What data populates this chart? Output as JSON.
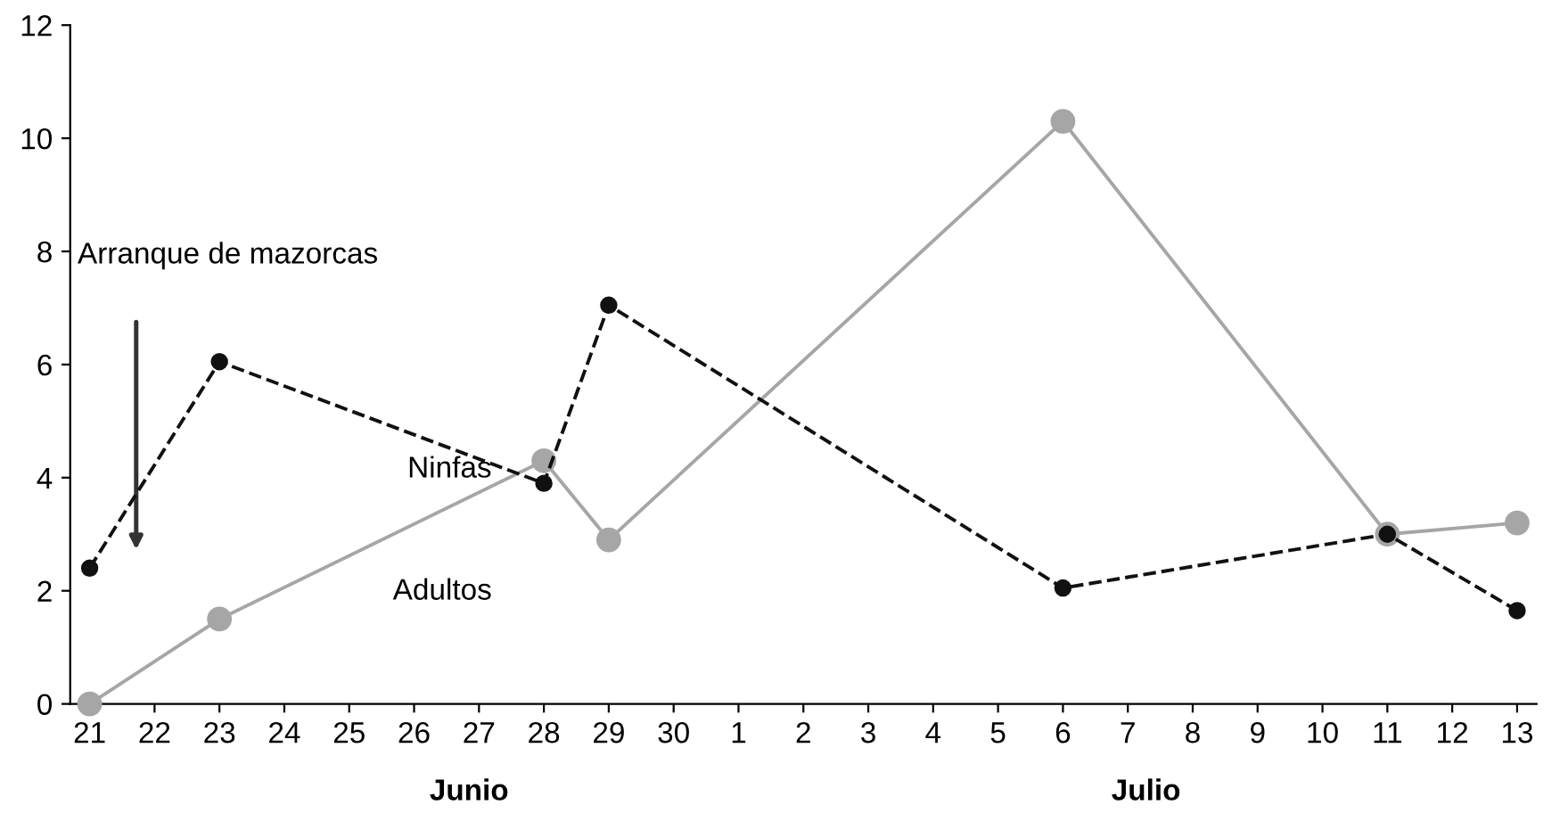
{
  "chart_data": {
    "type": "line",
    "categories": [
      "21",
      "22",
      "23",
      "24",
      "25",
      "26",
      "27",
      "28",
      "29",
      "30",
      "1",
      "2",
      "3",
      "4",
      "5",
      "6",
      "7",
      "8",
      "9",
      "10",
      "11",
      "12",
      "13"
    ],
    "series": [
      {
        "name": "Adultos",
        "color": "#a6a6a6",
        "marker": "circle",
        "line_style": "solid",
        "values": [
          0,
          null,
          1.5,
          null,
          null,
          null,
          null,
          4.3,
          2.9,
          null,
          null,
          null,
          null,
          null,
          null,
          10.3,
          null,
          null,
          null,
          null,
          3.0,
          null,
          3.2
        ]
      },
      {
        "name": "Ninfas",
        "color": "#111111",
        "marker": "circle",
        "line_style": "dashed",
        "values": [
          2.4,
          null,
          6.05,
          null,
          null,
          null,
          null,
          3.9,
          7.05,
          null,
          null,
          null,
          null,
          null,
          null,
          2.05,
          null,
          null,
          null,
          null,
          3.0,
          null,
          1.65
        ]
      }
    ],
    "ylim": [
      0,
      12
    ],
    "yticks": [
      0,
      2,
      4,
      6,
      8,
      10,
      12
    ],
    "grid": false,
    "annotations": [
      "Arranque de mazorcas",
      "Junio",
      "Julio"
    ]
  }
}
